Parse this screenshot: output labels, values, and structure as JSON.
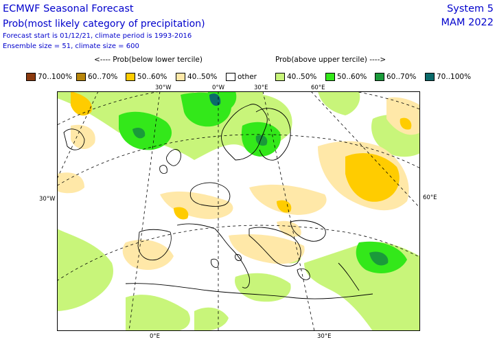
{
  "header": {
    "title": "ECMWF Seasonal Forecast",
    "subtitle": "Prob(most likely category of precipitation)",
    "forecast_info": "Forecast start is 01/12/21, climate period is 1993-2016",
    "ensemble_info": "Ensemble size = 51, climate size = 600",
    "system": "System 5",
    "season": "MAM 2022"
  },
  "legend": {
    "below_header": "<---- Prob(below lower tercile)",
    "above_header": "Prob(above upper tercile) ---->",
    "items": [
      {
        "label": "70..100%",
        "color": "#8b3a0f"
      },
      {
        "label": "60..70%",
        "color": "#b8860b"
      },
      {
        "label": "50..60%",
        "color": "#ffcc00"
      },
      {
        "label": "40..50%",
        "color": "#ffe8a8"
      },
      {
        "label": "other",
        "color": "#ffffff"
      },
      {
        "label": "40..50%",
        "color": "#c8f57a"
      },
      {
        "label": "50..60%",
        "color": "#33e81a"
      },
      {
        "label": "60..70%",
        "color": "#1a9a3a"
      },
      {
        "label": "70..100%",
        "color": "#0b6b6b"
      }
    ]
  },
  "map_labels": {
    "lon_30w_top": "30°W",
    "lon_0w_top": "0°W",
    "lon_30e_top": "30°E",
    "lon_60e_top": "60°E",
    "lat_30w_left": "30°W",
    "lat_60e_right": "60°E",
    "lon_0e_bottom": "0°E",
    "lon_30e_bottom": "30°E"
  }
}
